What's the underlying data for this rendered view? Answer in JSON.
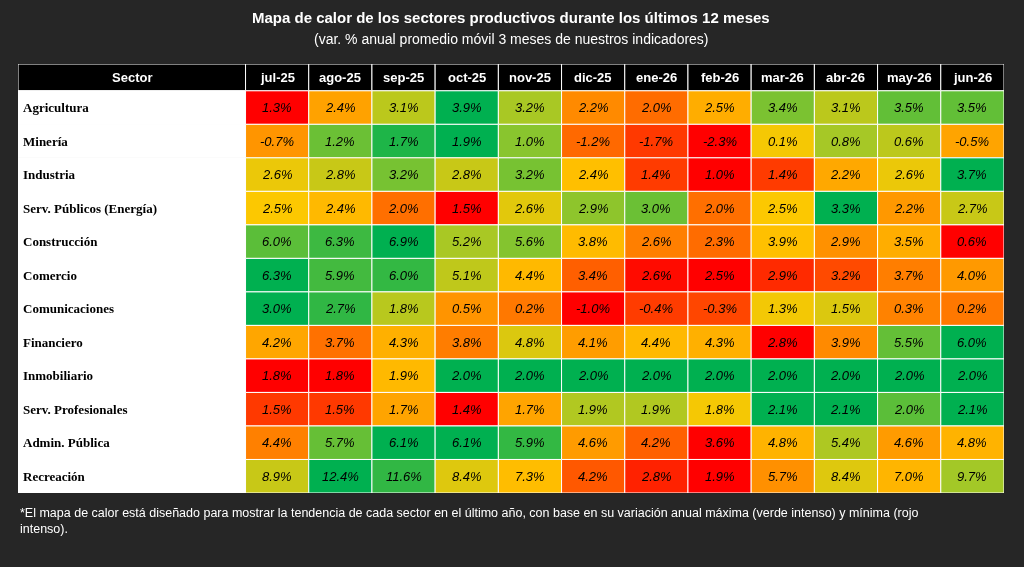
{
  "chart_data": {
    "type": "heatmap",
    "title": "Mapa de calor de los sectores productivos durante los últimos 12 meses",
    "subtitle": "(var. % anual promedio móvil 3 meses de nuestros indicadores)",
    "ylabel": "Sector",
    "categories": [
      "jul-25",
      "ago-25",
      "sep-25",
      "oct-25",
      "nov-25",
      "dic-25",
      "ene-26",
      "feb-26",
      "mar-26",
      "abr-26",
      "may-26",
      "jun-26"
    ],
    "y_categories": [
      "Agricultura",
      "Minería",
      "Industria",
      "Serv. Públicos (Energía)",
      "Construcción",
      "Comercio",
      "Comunicaciones",
      "Financiero",
      "Inmobiliario",
      "Serv. Profesionales",
      "Admin. Pública",
      "Recreación"
    ],
    "cells": [
      [
        1.3,
        2.4,
        3.1,
        3.9,
        3.2,
        2.2,
        2.0,
        2.5,
        3.4,
        3.1,
        3.5,
        3.5
      ],
      [
        -0.7,
        1.2,
        1.7,
        1.9,
        1.0,
        -1.2,
        -1.7,
        -2.3,
        0.1,
        0.8,
        0.6,
        -0.5
      ],
      [
        2.6,
        2.8,
        3.2,
        2.8,
        3.2,
        2.4,
        1.4,
        1.0,
        1.4,
        2.2,
        2.6,
        3.7
      ],
      [
        2.5,
        2.4,
        2.0,
        1.5,
        2.6,
        2.9,
        3.0,
        2.0,
        2.5,
        3.3,
        2.2,
        2.7
      ],
      [
        6.0,
        6.3,
        6.9,
        5.2,
        5.6,
        3.8,
        2.6,
        2.3,
        3.9,
        2.9,
        3.5,
        0.6
      ],
      [
        6.3,
        5.9,
        6.0,
        5.1,
        4.4,
        3.4,
        2.6,
        2.5,
        2.9,
        3.2,
        3.7,
        4.0
      ],
      [
        3.0,
        2.7,
        1.8,
        0.5,
        0.2,
        -1.0,
        -0.4,
        -0.3,
        1.3,
        1.5,
        0.3,
        0.2
      ],
      [
        4.2,
        3.7,
        4.3,
        3.8,
        4.8,
        4.1,
        4.4,
        4.3,
        2.8,
        3.9,
        5.5,
        6.0
      ],
      [
        1.8,
        1.8,
        1.9,
        2.0,
        2.0,
        2.0,
        2.0,
        2.0,
        2.0,
        2.0,
        2.0,
        2.0
      ],
      [
        1.5,
        1.5,
        1.7,
        1.4,
        1.7,
        1.9,
        1.9,
        1.8,
        2.1,
        2.1,
        2.0,
        2.1
      ],
      [
        4.4,
        5.7,
        6.1,
        6.1,
        5.9,
        4.6,
        4.2,
        3.6,
        4.8,
        5.4,
        4.6,
        4.8
      ],
      [
        8.9,
        12.4,
        11.6,
        8.4,
        7.3,
        4.2,
        2.8,
        1.9,
        5.7,
        8.4,
        7.0,
        9.7
      ]
    ],
    "cell_labels": [
      [
        "1.3%",
        "2.4%",
        "3.1%",
        "3.9%",
        "3.2%",
        "2.2%",
        "2.0%",
        "2.5%",
        "3.4%",
        "3.1%",
        "3.5%",
        "3.5%"
      ],
      [
        "-0.7%",
        "1.2%",
        "1.7%",
        "1.9%",
        "1.0%",
        "-1.2%",
        "-1.7%",
        "-2.3%",
        "0.1%",
        "0.8%",
        "0.6%",
        "-0.5%"
      ],
      [
        "2.6%",
        "2.8%",
        "3.2%",
        "2.8%",
        "3.2%",
        "2.4%",
        "1.4%",
        "1.0%",
        "1.4%",
        "2.2%",
        "2.6%",
        "3.7%"
      ],
      [
        "2.5%",
        "2.4%",
        "2.0%",
        "1.5%",
        "2.6%",
        "2.9%",
        "3.0%",
        "2.0%",
        "2.5%",
        "3.3%",
        "2.2%",
        "2.7%"
      ],
      [
        "6.0%",
        "6.3%",
        "6.9%",
        "5.2%",
        "5.6%",
        "3.8%",
        "2.6%",
        "2.3%",
        "3.9%",
        "2.9%",
        "3.5%",
        "0.6%"
      ],
      [
        "6.3%",
        "5.9%",
        "6.0%",
        "5.1%",
        "4.4%",
        "3.4%",
        "2.6%",
        "2.5%",
        "2.9%",
        "3.2%",
        "3.7%",
        "4.0%"
      ],
      [
        "3.0%",
        "2.7%",
        "1.8%",
        "0.5%",
        "0.2%",
        "-1.0%",
        "-0.4%",
        "-0.3%",
        "1.3%",
        "1.5%",
        "0.3%",
        "0.2%"
      ],
      [
        "4.2%",
        "3.7%",
        "4.3%",
        "3.8%",
        "4.8%",
        "4.1%",
        "4.4%",
        "4.3%",
        "2.8%",
        "3.9%",
        "5.5%",
        "6.0%"
      ],
      [
        "1.8%",
        "1.8%",
        "1.9%",
        "2.0%",
        "2.0%",
        "2.0%",
        "2.0%",
        "2.0%",
        "2.0%",
        "2.0%",
        "2.0%",
        "2.0%"
      ],
      [
        "1.5%",
        "1.5%",
        "1.7%",
        "1.4%",
        "1.7%",
        "1.9%",
        "1.9%",
        "1.8%",
        "2.1%",
        "2.1%",
        "2.0%",
        "2.1%"
      ],
      [
        "4.4%",
        "5.7%",
        "6.1%",
        "6.1%",
        "5.9%",
        "4.6%",
        "4.2%",
        "3.6%",
        "4.8%",
        "5.4%",
        "4.6%",
        "4.8%"
      ],
      [
        "8.9%",
        "12.4%",
        "11.6%",
        "8.4%",
        "7.3%",
        "4.2%",
        "2.8%",
        "1.9%",
        "5.7%",
        "8.4%",
        "7.0%",
        "9.7%"
      ]
    ],
    "annotations": [
      "*El mapa de calor está diseñado para mostrar la tendencia de cada sector en el último año, con base en su variación anual máxima (verde intenso) y mínima (rojo intenso)."
    ]
  }
}
